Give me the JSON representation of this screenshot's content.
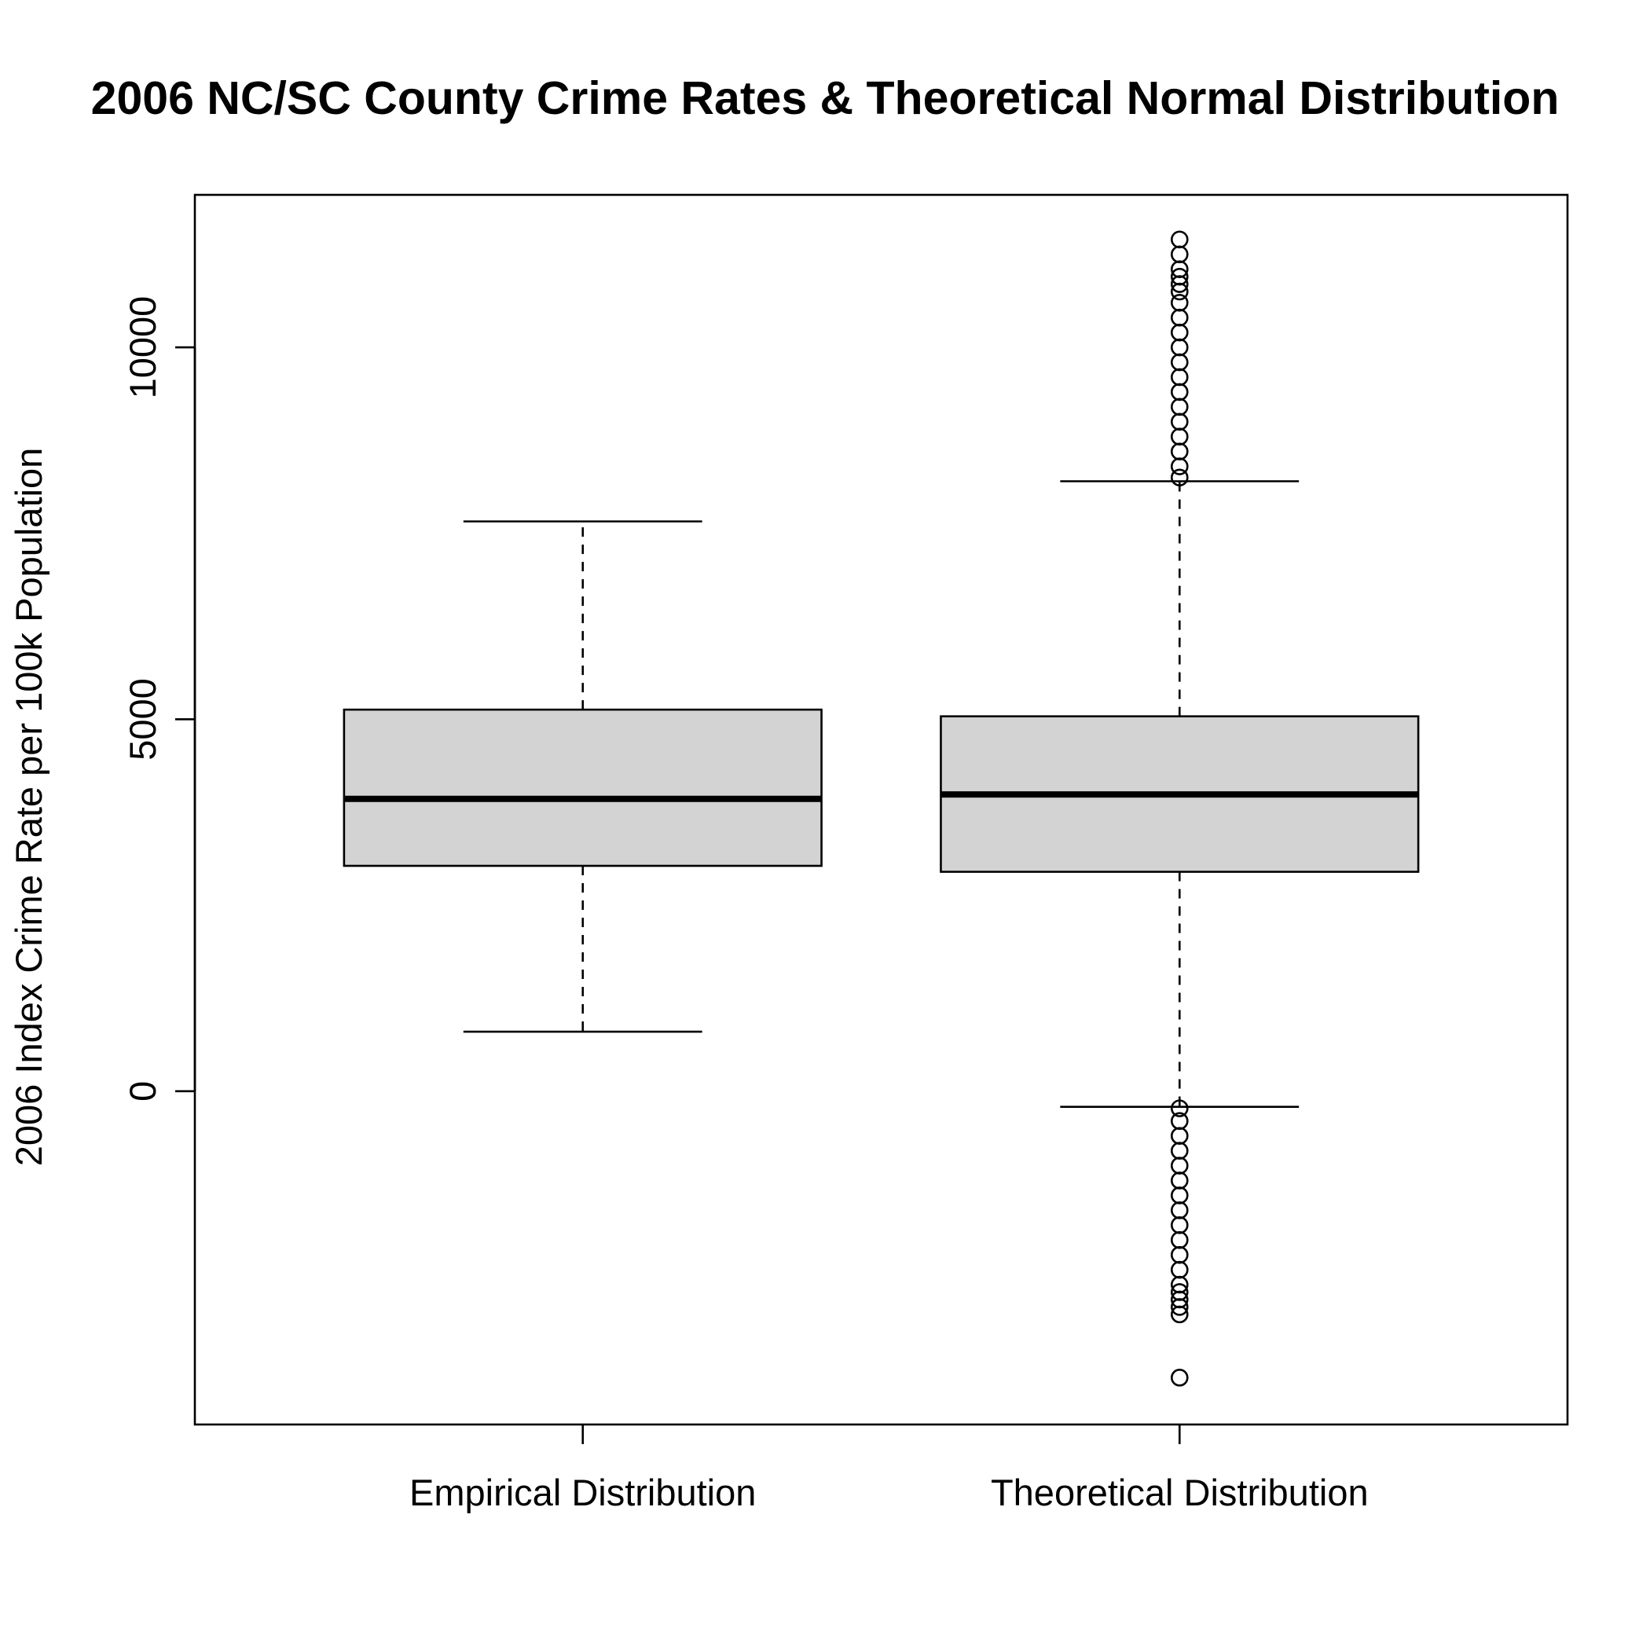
{
  "chart_data": {
    "type": "boxplot",
    "title": "2006 NC/SC County Crime Rates & Theoretical Normal Distribution",
    "xlabel": "",
    "ylabel": "2006 Index Crime Rate per 100k Population",
    "categories": [
      "Empirical Distribution",
      "Theoretical Distribution"
    ],
    "y_ticks": [
      0,
      5000,
      10000
    ],
    "y_tick_labels": [
      "0",
      "5000",
      "10000"
    ],
    "ylim": [
      -4480,
      12050
    ],
    "grid": false,
    "legend": "none",
    "box_fill": "#d3d3d3",
    "line_color": "#000000",
    "boxes": [
      {
        "name": "Empirical Distribution",
        "whisker_low": 800,
        "q1": 3030,
        "median": 3930,
        "q3": 5130,
        "whisker_high": 7660,
        "outliers": []
      },
      {
        "name": "Theoretical Distribution",
        "whisker_low": -210,
        "q1": 2950,
        "median": 3990,
        "q3": 5040,
        "whisker_high": 8200,
        "outliers": [
          8250,
          8400,
          8600,
          8800,
          9000,
          9200,
          9400,
          9600,
          9800,
          10000,
          10200,
          10400,
          10600,
          10750,
          10850,
          10950,
          11050,
          11250,
          11450,
          -230,
          -400,
          -600,
          -800,
          -1000,
          -1200,
          -1400,
          -1600,
          -1800,
          -2000,
          -2200,
          -2400,
          -2600,
          -2700,
          -2800,
          -2900,
          -3000,
          -3850
        ]
      }
    ]
  }
}
